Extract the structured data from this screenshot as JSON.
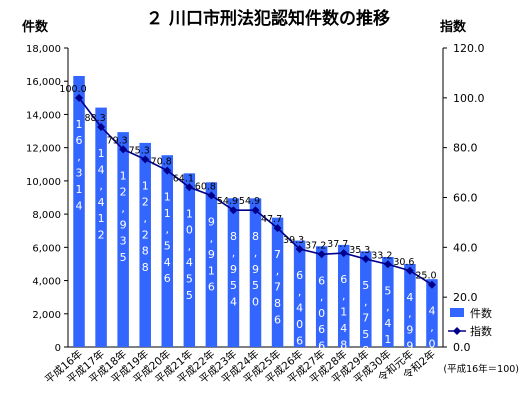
{
  "chart_data": {
    "type": "bar",
    "title": "２ 川口市刑法犯認知件数の推移",
    "y_left_label": "件数",
    "y_right_label": "指数",
    "categories": [
      "平成16年",
      "平成17年",
      "平成18年",
      "平成19年",
      "平成20年",
      "平成21年",
      "平成22年",
      "平成23年",
      "平成24年",
      "平成25年",
      "平成26年",
      "平成27年",
      "平成28年",
      "平成29年",
      "平成30年",
      "令和元年",
      "令和2年"
    ],
    "series": [
      {
        "name": "件数",
        "kind": "bar",
        "axis": "left",
        "color": "#3366ff",
        "values": [
          16314,
          14412,
          12935,
          12288,
          11546,
          10455,
          9916,
          8954,
          8950,
          7786,
          6406,
          6066,
          6148,
          5758,
          5419,
          4997,
          4083
        ],
        "labels": [
          "16,314",
          "14,412",
          "12,935",
          "12,288",
          "11,546",
          "10,455",
          "9,916",
          "8,954",
          "8,950",
          "7,786",
          "6,406",
          "6,066",
          "6,148",
          "5,758",
          "5,419",
          "4,997",
          "4,083"
        ]
      },
      {
        "name": "指数",
        "kind": "line",
        "axis": "right",
        "color": "#00008b",
        "values": [
          100.0,
          88.3,
          79.3,
          75.3,
          70.8,
          64.1,
          60.8,
          54.9,
          54.9,
          47.7,
          39.3,
          37.2,
          37.7,
          35.3,
          33.2,
          30.6,
          25.0
        ],
        "labels": [
          "100.0",
          "88.3",
          "79.3",
          "75.3",
          "70.8",
          "64.1",
          "60.8",
          "54.9",
          "54.9",
          "47.7",
          "39.3",
          "37.2",
          "37.7",
          "35.3",
          "33.2",
          "30.6",
          "25.0"
        ]
      }
    ],
    "y_left": {
      "min": 0,
      "max": 18000,
      "ticks": [
        "0",
        "2,000",
        "4,000",
        "6,000",
        "8,000",
        "10,000",
        "12,000",
        "14,000",
        "16,000",
        "18,000"
      ]
    },
    "y_right": {
      "min": 0,
      "max": 120,
      "ticks": [
        "0.0",
        "20.0",
        "40.0",
        "60.0",
        "80.0",
        "100.0",
        "120.0"
      ]
    },
    "legend": {
      "placement": "right",
      "items": [
        {
          "label": "件数",
          "kind": "bar"
        },
        {
          "label": "指数",
          "kind": "line"
        }
      ]
    },
    "note": "(平成16年＝100)",
    "grid": false
  }
}
